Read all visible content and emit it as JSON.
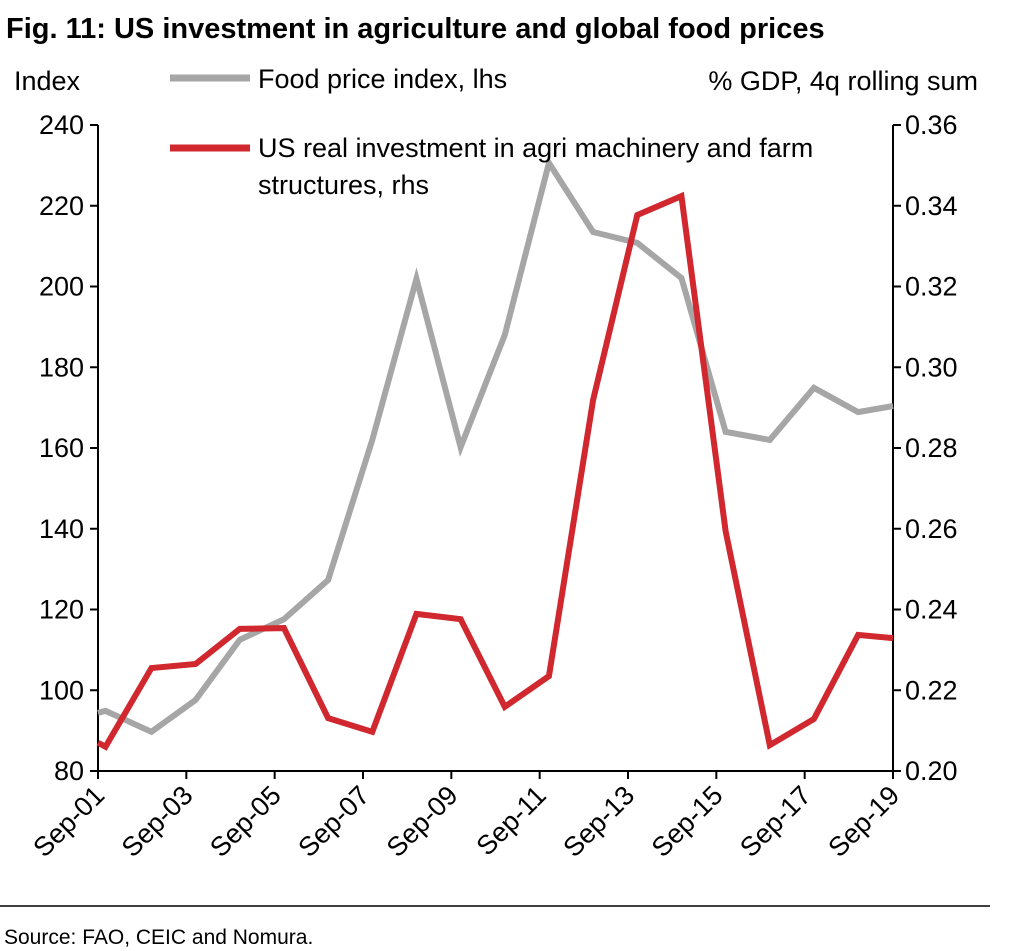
{
  "chart_data": {
    "type": "line",
    "title": "Fig. 11: US investment in agriculture and global food prices",
    "y_label": "Index",
    "y2_label": "% GDP, 4q rolling sum",
    "source": "Source: FAO, CEIC and Nomura.",
    "x": [
      2001.75,
      2001.92,
      2002.96,
      2003.96,
      2004.96,
      2005.96,
      2006.96,
      2007.96,
      2008.96,
      2009.96,
      2010.96,
      2011.96,
      2012.96,
      2013.96,
      2014.96,
      2015.96,
      2016.96,
      2017.96,
      2018.96,
      2019.75
    ],
    "xlim": [
      2001.75,
      2019.75
    ],
    "xticks": [
      {
        "value": 2001.75,
        "label": "Sep-01"
      },
      {
        "value": 2003.75,
        "label": "Sep-03"
      },
      {
        "value": 2005.75,
        "label": "Sep-05"
      },
      {
        "value": 2007.75,
        "label": "Sep-07"
      },
      {
        "value": 2009.75,
        "label": "Sep-09"
      },
      {
        "value": 2011.75,
        "label": "Sep-11"
      },
      {
        "value": 2013.75,
        "label": "Sep-13"
      },
      {
        "value": 2015.75,
        "label": "Sep-15"
      },
      {
        "value": 2017.75,
        "label": "Sep-17"
      },
      {
        "value": 2019.75,
        "label": "Sep-19"
      }
    ],
    "ylim": [
      80,
      240
    ],
    "yticks": [
      80,
      100,
      120,
      140,
      160,
      180,
      200,
      220,
      240
    ],
    "y2lim": [
      0.2,
      0.36
    ],
    "y2ticks": [
      {
        "value": 0.2,
        "label": "0.20"
      },
      {
        "value": 0.22,
        "label": "0.22"
      },
      {
        "value": 0.24,
        "label": "0.24"
      },
      {
        "value": 0.26,
        "label": "0.26"
      },
      {
        "value": 0.28,
        "label": "0.28"
      },
      {
        "value": 0.3,
        "label": "0.30"
      },
      {
        "value": 0.32,
        "label": "0.32"
      },
      {
        "value": 0.34,
        "label": "0.34"
      },
      {
        "value": 0.36,
        "label": "0.36"
      }
    ],
    "series": [
      {
        "name": "Food price index, lhs",
        "color": "#a6a6a6",
        "values": [
          94.4,
          94.9,
          89.7,
          97.6,
          112.5,
          117.6,
          127.3,
          162,
          201.9,
          160.2,
          188,
          230.6,
          213.5,
          210.8,
          202.1,
          164,
          162,
          174.9,
          168.9,
          170.4
        ]
      },
      {
        "name": "US real investment in agri machinery and farm structures, rhs",
        "color": "#d0282e",
        "axis": "y2",
        "values": [
          0.207,
          0.206,
          0.2255,
          0.2265,
          0.2352,
          0.2354,
          0.2131,
          0.2097,
          0.2389,
          0.2376,
          0.2159,
          0.2235,
          0.2919,
          0.3377,
          0.3424,
          0.2594,
          0.2064,
          0.2129,
          0.2337,
          0.2329
        ]
      }
    ]
  }
}
